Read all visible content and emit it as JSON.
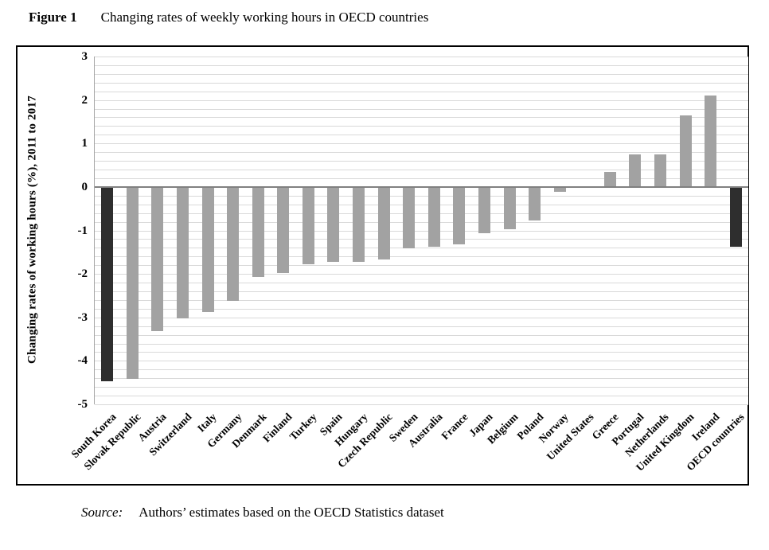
{
  "figure": {
    "label": "Figure 1",
    "title": "Changing rates of weekly working hours in OECD countries"
  },
  "source": {
    "label": "Source:",
    "text": "Authors’ estimates based on the OECD Statistics dataset"
  },
  "chart_data": {
    "type": "bar",
    "title": "Figure 1  Changing rates of weekly working hours in OECD countries",
    "xlabel": "",
    "ylabel": "Changing rates of working hours (%), 2011 to 2017",
    "ylim": [
      -5,
      3
    ],
    "ytick_step": 1,
    "minor_grid_step": 0.2,
    "grid": true,
    "legend": "none",
    "categories": [
      "South Korea",
      "Slovak Republic",
      "Austria",
      "Switzerland",
      "Italy",
      "Germany",
      "Denmark",
      "Finland",
      "Turkey",
      "Spain",
      "Hungary",
      "Czech Republic",
      "Sweden",
      "Australia",
      "France",
      "Japan",
      "Belgium",
      "Poland",
      "Norway",
      "United States",
      "Greece",
      "Portugal",
      "Netherlands",
      "United Kingdom",
      "Ireland",
      "OECD countries"
    ],
    "values": [
      -4.45,
      -4.4,
      -3.3,
      -3.0,
      -2.85,
      -2.6,
      -2.05,
      -1.95,
      -1.75,
      -1.7,
      -1.7,
      -1.65,
      -1.4,
      -1.35,
      -1.3,
      -1.05,
      -0.95,
      -0.75,
      -0.1,
      0.0,
      0.35,
      0.75,
      0.75,
      1.65,
      2.1,
      -1.35
    ],
    "highlight_indices": [
      0,
      25
    ],
    "bar_color": "#a2a2a2",
    "highlight_color": "#2e2e2e",
    "grid_color": "#d9d9d9",
    "zero_line_color": "#808080",
    "frame_color": "#000000"
  }
}
